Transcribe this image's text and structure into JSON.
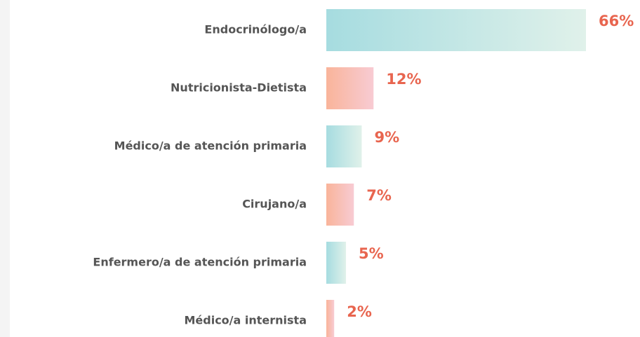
{
  "chart_data": {
    "type": "hbar",
    "categories": [
      "Endocrinólogo/a",
      "Nutricionista-Dietista",
      "Médico/a de atención primaria",
      "Cirujano/a",
      "Enfermero/a de atención primaria",
      "Médico/a internista"
    ],
    "values": [
      66,
      12,
      9,
      7,
      5,
      2
    ],
    "value_labels": [
      "66%",
      "12%",
      "9%",
      "7%",
      "5%",
      "2%"
    ],
    "colors": [
      [
        "#a6dce0",
        "#e0f1ea"
      ],
      [
        "#f9b49a",
        "#f8cbd3"
      ],
      [
        "#a6dce0",
        "#e0f1ea"
      ],
      [
        "#f9b49a",
        "#f8cbd3"
      ],
      [
        "#a6dce0",
        "#e0f1ea"
      ],
      [
        "#f9b49a",
        "#f8cbd3"
      ]
    ],
    "label_color": "#e8654f"
  }
}
